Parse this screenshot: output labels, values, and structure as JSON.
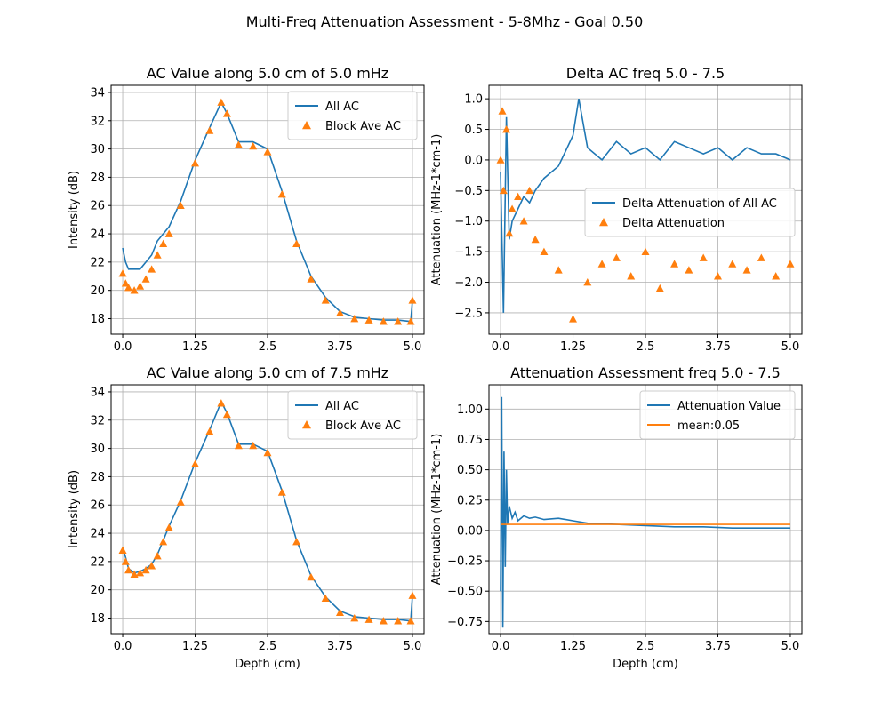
{
  "figure": {
    "suptitle": "Multi-Freq Attenuation Assessment - 5-8Mhz - Goal 0.50"
  },
  "colors": {
    "blue": "#1f77b4",
    "orange": "#ff7f0e",
    "grid": "#b0b0b0"
  },
  "chart_data": [
    {
      "id": "ac-5",
      "type": "line+scatter",
      "title": "AC Value along 5.0 cm of 5.0 mHz",
      "xlabel": "",
      "ylabel": "Intensity (dB)",
      "xlim": [
        -0.2,
        5.2
      ],
      "ylim": [
        16.9,
        34.5
      ],
      "xticks": [
        0,
        1.25,
        2.5,
        3.75,
        5.0
      ],
      "xtick_labels": [
        "0.0",
        "1.25",
        "2.5",
        "3.75",
        "5.0"
      ],
      "yticks": [
        18,
        20,
        22,
        24,
        26,
        28,
        30,
        32,
        34
      ],
      "ytick_labels": [
        "18",
        "20",
        "22",
        "24",
        "26",
        "28",
        "30",
        "32",
        "34"
      ],
      "grid": true,
      "legend": {
        "position": "top-right",
        "entries": [
          "All AC",
          "Block Ave AC"
        ]
      },
      "series": [
        {
          "name": "All AC",
          "kind": "line",
          "color": "#1f77b4",
          "x": [
            0.0,
            0.05,
            0.1,
            0.2,
            0.3,
            0.4,
            0.5,
            0.6,
            0.7,
            0.8,
            1.0,
            1.25,
            1.5,
            1.7,
            1.8,
            2.0,
            2.25,
            2.5,
            2.75,
            3.0,
            3.25,
            3.5,
            3.75,
            4.0,
            4.25,
            4.5,
            4.75,
            4.97,
            5.0
          ],
          "y": [
            23.0,
            22.0,
            21.5,
            21.5,
            21.5,
            22.0,
            22.5,
            23.5,
            24.0,
            24.5,
            26.3,
            29.2,
            31.5,
            33.3,
            32.5,
            30.5,
            30.5,
            30.0,
            27.0,
            23.5,
            21.0,
            19.5,
            18.5,
            18.1,
            18.0,
            17.9,
            17.9,
            17.8,
            19.3
          ]
        },
        {
          "name": "Block Ave AC",
          "kind": "scatter",
          "marker": "triangle",
          "color": "#ff7f0e",
          "x": [
            0.0,
            0.05,
            0.1,
            0.2,
            0.3,
            0.4,
            0.5,
            0.6,
            0.7,
            0.8,
            1.0,
            1.25,
            1.5,
            1.7,
            1.8,
            2.0,
            2.25,
            2.5,
            2.75,
            3.0,
            3.25,
            3.5,
            3.75,
            4.0,
            4.25,
            4.5,
            4.75,
            4.97,
            5.0
          ],
          "y": [
            21.2,
            20.5,
            20.2,
            20.0,
            20.3,
            20.8,
            21.5,
            22.5,
            23.3,
            24.0,
            26.0,
            29.0,
            31.3,
            33.3,
            32.5,
            30.3,
            30.2,
            29.8,
            26.8,
            23.3,
            20.8,
            19.3,
            18.4,
            18.0,
            17.9,
            17.8,
            17.8,
            17.8,
            19.3
          ]
        }
      ]
    },
    {
      "id": "delta-ac",
      "type": "line+scatter",
      "title": "Delta AC freq 5.0 - 7.5",
      "xlabel": "",
      "ylabel": "Attenuation (MHz-1*cm-1)",
      "xlim": [
        -0.2,
        5.2
      ],
      "ylim": [
        -2.85,
        1.22
      ],
      "xticks": [
        0,
        1.25,
        2.5,
        3.75,
        5.0
      ],
      "xtick_labels": [
        "0.0",
        "1.25",
        "2.5",
        "3.75",
        "5.0"
      ],
      "yticks": [
        -2.5,
        -2.0,
        -1.5,
        -1.0,
        -0.5,
        0.0,
        0.5,
        1.0
      ],
      "ytick_labels": [
        "−2.5",
        "−2.0",
        "−1.5",
        "−1.0",
        "−0.5",
        "0.0",
        "0.5",
        "1.0"
      ],
      "grid": true,
      "legend": {
        "position": "center-right",
        "entries": [
          "Delta Attenuation of All AC",
          "Delta Attenuation"
        ]
      },
      "series": [
        {
          "name": "Delta Attenuation of All AC",
          "kind": "line",
          "color": "#1f77b4",
          "x": [
            0.0,
            0.05,
            0.1,
            0.15,
            0.2,
            0.3,
            0.4,
            0.5,
            0.6,
            0.75,
            1.0,
            1.25,
            1.35,
            1.5,
            1.75,
            2.0,
            2.25,
            2.5,
            2.75,
            3.0,
            3.25,
            3.5,
            3.75,
            4.0,
            4.25,
            4.5,
            4.75,
            5.0
          ],
          "y": [
            -0.2,
            -2.5,
            0.7,
            -1.3,
            -1.0,
            -0.8,
            -0.6,
            -0.7,
            -0.5,
            -0.3,
            -0.1,
            0.4,
            1.0,
            0.2,
            0.0,
            0.3,
            0.1,
            0.2,
            0.0,
            0.3,
            0.2,
            0.1,
            0.2,
            0.0,
            0.2,
            0.1,
            0.1,
            0.0
          ]
        },
        {
          "name": "Delta Attenuation",
          "kind": "scatter",
          "marker": "triangle",
          "color": "#ff7f0e",
          "x": [
            0.0,
            0.03,
            0.05,
            0.1,
            0.15,
            0.2,
            0.3,
            0.4,
            0.5,
            0.6,
            0.75,
            1.0,
            1.25,
            1.5,
            1.75,
            2.0,
            2.25,
            2.5,
            2.75,
            3.0,
            3.25,
            3.5,
            3.75,
            4.0,
            4.25,
            4.5,
            4.75,
            5.0
          ],
          "y": [
            0.0,
            0.8,
            -0.5,
            0.5,
            -1.2,
            -0.8,
            -0.6,
            -1.0,
            -0.5,
            -1.3,
            -1.5,
            -1.8,
            -2.6,
            -2.0,
            -1.7,
            -1.6,
            -1.9,
            -1.5,
            -2.1,
            -1.7,
            -1.8,
            -1.6,
            -1.9,
            -1.7,
            -1.8,
            -1.6,
            -1.9,
            -1.7
          ]
        }
      ]
    },
    {
      "id": "ac-7-5",
      "type": "line+scatter",
      "title": "AC Value along 5.0 cm of 7.5 mHz",
      "xlabel": "Depth (cm)",
      "ylabel": "Intensity (dB)",
      "xlim": [
        -0.2,
        5.2
      ],
      "ylim": [
        16.9,
        34.5
      ],
      "xticks": [
        0,
        1.25,
        2.5,
        3.75,
        5.0
      ],
      "xtick_labels": [
        "0.0",
        "1.25",
        "2.5",
        "3.75",
        "5.0"
      ],
      "yticks": [
        18,
        20,
        22,
        24,
        26,
        28,
        30,
        32,
        34
      ],
      "ytick_labels": [
        "18",
        "20",
        "22",
        "24",
        "26",
        "28",
        "30",
        "32",
        "34"
      ],
      "grid": true,
      "legend": {
        "position": "top-right",
        "entries": [
          "All AC",
          "Block Ave AC"
        ]
      },
      "series": [
        {
          "name": "All AC",
          "kind": "line",
          "color": "#1f77b4",
          "x": [
            0.0,
            0.05,
            0.1,
            0.2,
            0.3,
            0.4,
            0.5,
            0.6,
            0.7,
            0.8,
            1.0,
            1.25,
            1.5,
            1.7,
            1.8,
            2.0,
            2.25,
            2.5,
            2.75,
            3.0,
            3.25,
            3.5,
            3.75,
            4.0,
            4.25,
            4.5,
            4.75,
            4.97,
            5.0
          ],
          "y": [
            23.0,
            22.3,
            21.5,
            21.2,
            21.3,
            21.5,
            21.8,
            22.5,
            23.5,
            24.5,
            26.3,
            29.0,
            31.3,
            33.3,
            32.5,
            30.3,
            30.3,
            29.8,
            27.0,
            23.5,
            21.0,
            19.5,
            18.5,
            18.1,
            18.0,
            17.9,
            17.9,
            17.8,
            19.6
          ]
        },
        {
          "name": "Block Ave AC",
          "kind": "scatter",
          "marker": "triangle",
          "color": "#ff7f0e",
          "x": [
            0.0,
            0.05,
            0.1,
            0.2,
            0.3,
            0.4,
            0.5,
            0.6,
            0.7,
            0.8,
            1.0,
            1.25,
            1.5,
            1.7,
            1.8,
            2.0,
            2.25,
            2.5,
            2.75,
            3.0,
            3.25,
            3.5,
            3.75,
            4.0,
            4.25,
            4.5,
            4.75,
            4.97,
            5.0
          ],
          "y": [
            22.8,
            22.0,
            21.4,
            21.1,
            21.2,
            21.4,
            21.7,
            22.4,
            23.4,
            24.4,
            26.2,
            28.9,
            31.2,
            33.2,
            32.4,
            30.2,
            30.2,
            29.7,
            26.9,
            23.4,
            20.9,
            19.4,
            18.4,
            18.0,
            17.9,
            17.8,
            17.8,
            17.8,
            19.6
          ]
        }
      ]
    },
    {
      "id": "atten-assess",
      "type": "line",
      "title": "Attenuation Assessment freq 5.0 - 7.5",
      "xlabel": "Depth (cm)",
      "ylabel": "Attenuation (MHz-1*cm-1)",
      "xlim": [
        -0.2,
        5.2
      ],
      "ylim": [
        -0.85,
        1.2
      ],
      "xticks": [
        0,
        1.25,
        2.5,
        3.75,
        5.0
      ],
      "xtick_labels": [
        "0.0",
        "1.25",
        "2.5",
        "3.75",
        "5.0"
      ],
      "yticks": [
        -0.75,
        -0.5,
        -0.25,
        0.0,
        0.25,
        0.5,
        0.75,
        1.0
      ],
      "ytick_labels": [
        "−0.75",
        "−0.50",
        "−0.25",
        "0.00",
        "0.25",
        "0.50",
        "0.75",
        "1.00"
      ],
      "grid": true,
      "legend": {
        "position": "top-right",
        "entries": [
          "Attenuation Value",
          "mean:0.05"
        ]
      },
      "series": [
        {
          "name": "Attenuation Value",
          "kind": "line",
          "color": "#1f77b4",
          "x": [
            0.0,
            0.02,
            0.04,
            0.06,
            0.08,
            0.1,
            0.12,
            0.15,
            0.2,
            0.25,
            0.3,
            0.4,
            0.5,
            0.6,
            0.75,
            1.0,
            1.25,
            1.5,
            2.0,
            2.5,
            3.0,
            3.5,
            4.0,
            4.5,
            5.0
          ],
          "y": [
            -0.5,
            1.1,
            -0.8,
            0.65,
            -0.3,
            0.5,
            0.05,
            0.2,
            0.1,
            0.15,
            0.08,
            0.12,
            0.1,
            0.11,
            0.09,
            0.1,
            0.08,
            0.06,
            0.05,
            0.04,
            0.03,
            0.03,
            0.02,
            0.02,
            0.02
          ]
        },
        {
          "name": "mean:0.05",
          "kind": "line",
          "color": "#ff7f0e",
          "x": [
            0.0,
            5.0
          ],
          "y": [
            0.05,
            0.05
          ]
        }
      ]
    }
  ]
}
